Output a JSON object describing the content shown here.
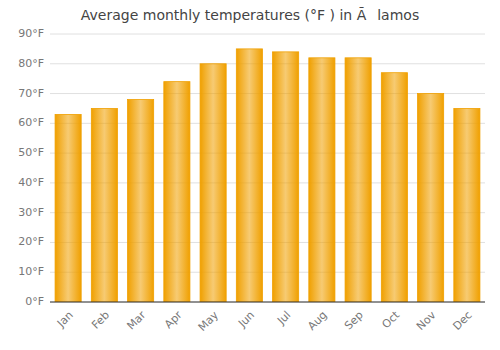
{
  "chart_data": {
    "type": "bar",
    "title": "Average monthly temperatures (°F ) in Ãlamos",
    "categories": [
      "Jan",
      "Feb",
      "Mar",
      "Apr",
      "May",
      "Jun",
      "Jul",
      "Aug",
      "Sep",
      "Oct",
      "Nov",
      "Dec"
    ],
    "values": [
      63,
      65,
      68,
      74,
      80,
      85,
      84,
      82,
      82,
      77,
      70,
      65
    ],
    "color": "#F0A000",
    "ylim": [
      0,
      90
    ],
    "yticks": [
      {
        "value": 0,
        "label": "0°F"
      },
      {
        "value": 10,
        "label": "10°F"
      },
      {
        "value": 20,
        "label": "20°F"
      },
      {
        "value": 30,
        "label": "30°F"
      },
      {
        "value": 40,
        "label": "40°F"
      },
      {
        "value": 50,
        "label": "50°F"
      },
      {
        "value": 60,
        "label": "60°F"
      },
      {
        "value": 70,
        "label": "70°F"
      },
      {
        "value": 80,
        "label": "80°F"
      },
      {
        "value": 90,
        "label": "90°F"
      }
    ],
    "grid": true
  }
}
